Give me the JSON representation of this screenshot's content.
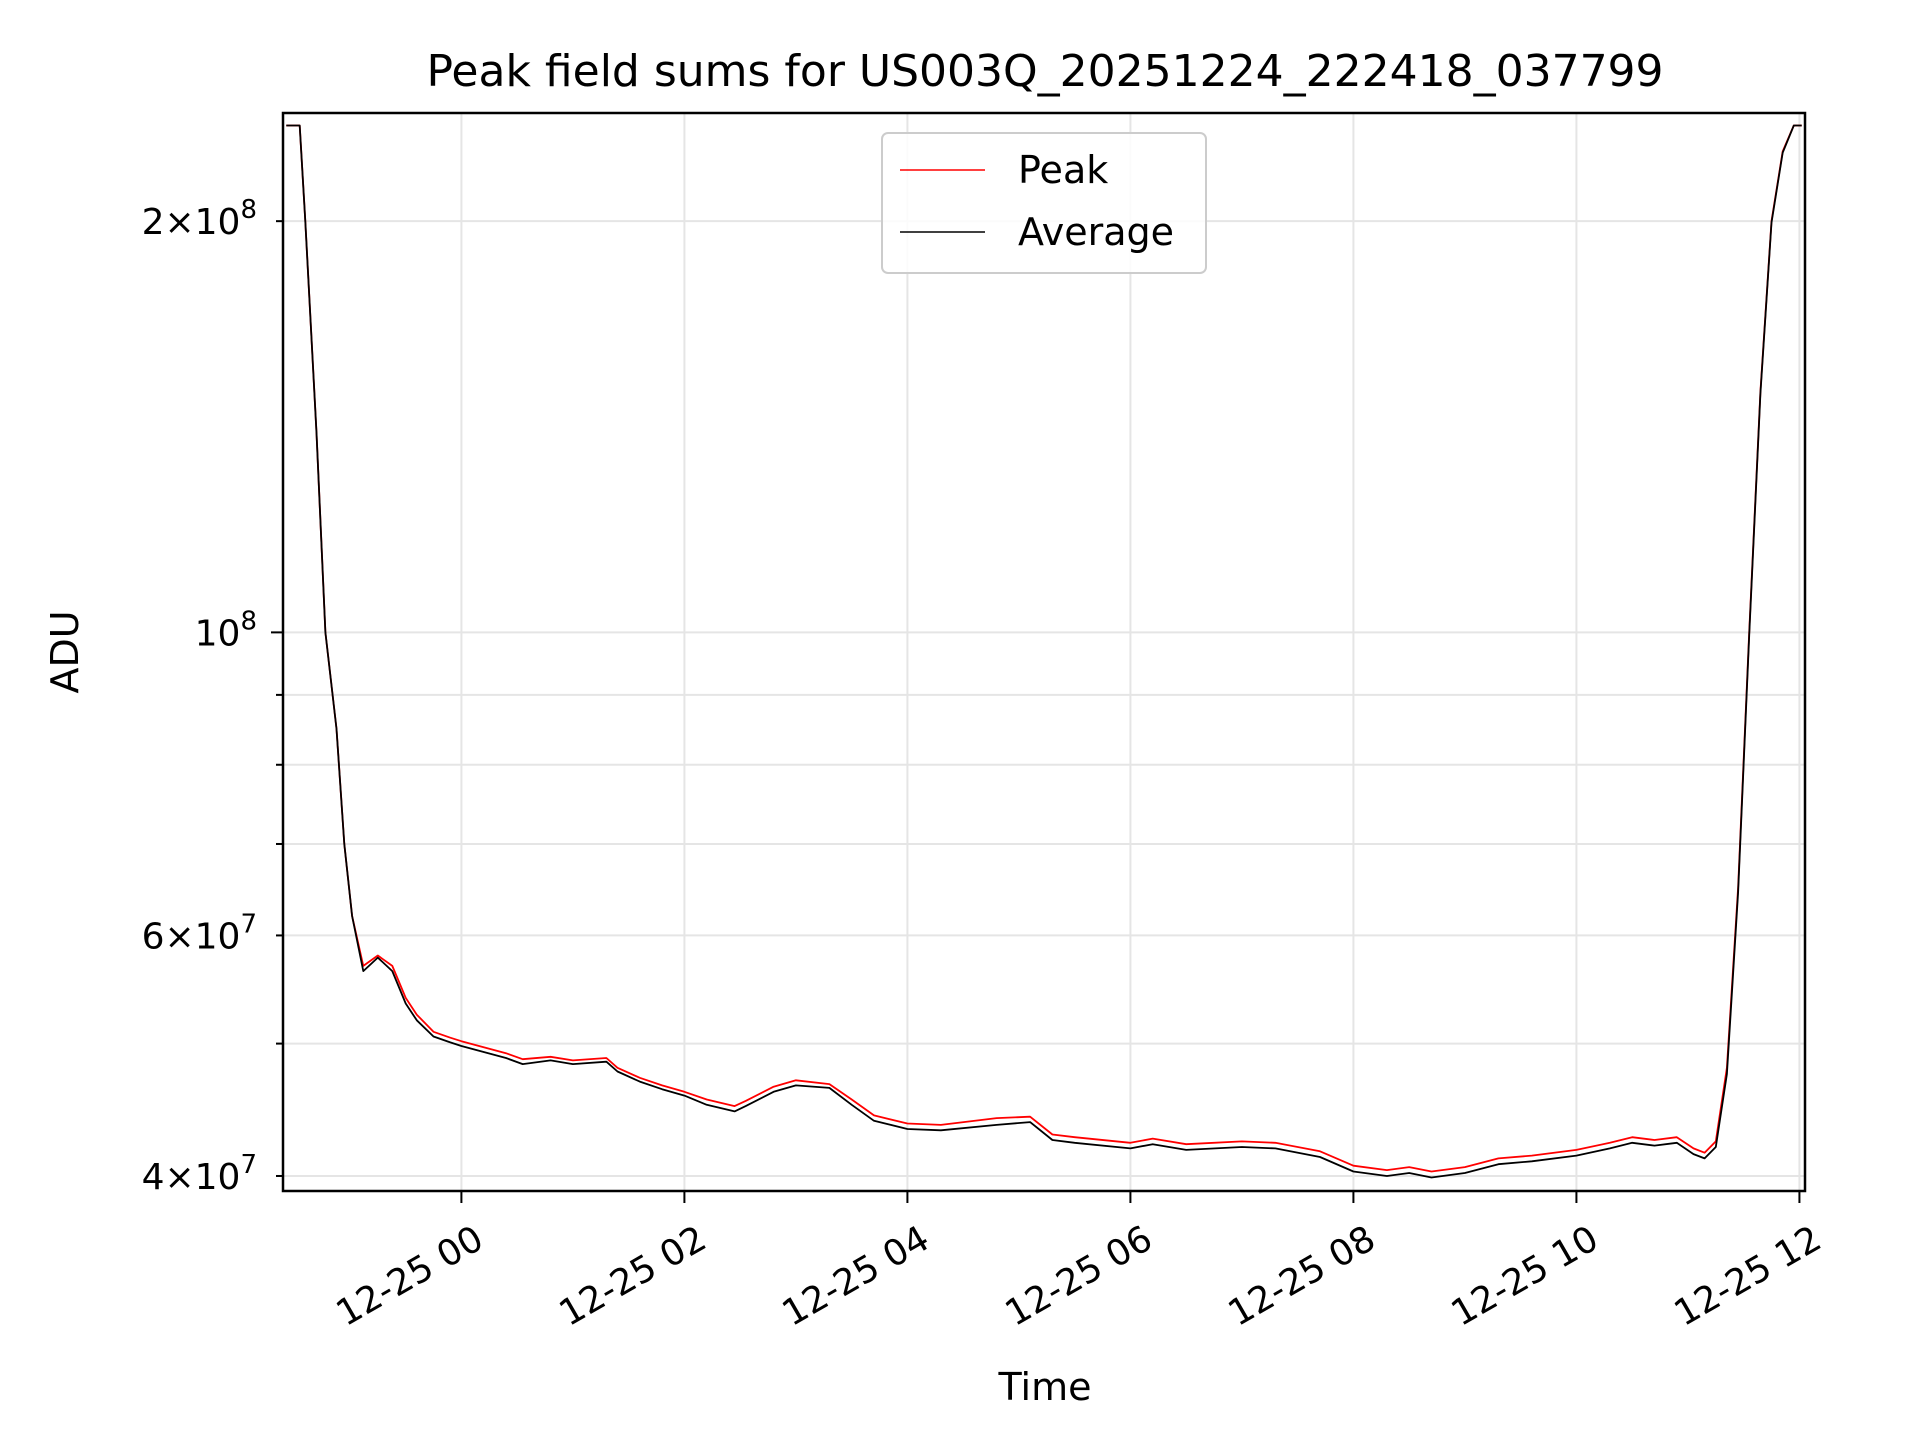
{
  "chart_data": {
    "type": "line",
    "title": "Peak field sums for US003Q_20251224_222418_037799",
    "xlabel": "Time",
    "ylabel": "ADU",
    "yscale": "log",
    "x_units": "hours since 2025-12-25 00:00",
    "xlim": [
      -1.6,
      12.05
    ],
    "ylim": [
      39000000,
      240000000
    ],
    "x_ticks": [
      {
        "value": 0,
        "label": "12-25 00"
      },
      {
        "value": 2,
        "label": "12-25 02"
      },
      {
        "value": 4,
        "label": "12-25 04"
      },
      {
        "value": 6,
        "label": "12-25 06"
      },
      {
        "value": 8,
        "label": "12-25 08"
      },
      {
        "value": 10,
        "label": "12-25 10"
      },
      {
        "value": 12,
        "label": "12-25 12"
      }
    ],
    "y_major_ticks": [
      {
        "value": 100000000,
        "base": "10",
        "exp": "8"
      }
    ],
    "y_minor_ticks": [
      {
        "value": 40000000,
        "mantissa": "4",
        "exp": "7"
      },
      {
        "value": 60000000,
        "mantissa": "6",
        "exp": "7"
      },
      {
        "value": 200000000,
        "mantissa": "2",
        "exp": "8"
      }
    ],
    "y_minor_unlabeled": [
      50000000,
      70000000,
      80000000,
      90000000
    ],
    "grid": true,
    "legend_position": "top-center",
    "series": [
      {
        "name": "Peak",
        "color": "#ff0000",
        "x": [
          -1.57,
          -1.45,
          -1.4,
          -1.3,
          -1.22,
          -1.12,
          -1.05,
          -0.98,
          -0.88,
          -0.75,
          -0.62,
          -0.5,
          -0.4,
          -0.25,
          -0.1,
          0.0,
          0.2,
          0.4,
          0.55,
          0.8,
          1.0,
          1.3,
          1.4,
          1.6,
          1.8,
          2.0,
          2.2,
          2.45,
          2.55,
          2.8,
          3.0,
          3.3,
          3.5,
          3.7,
          4.0,
          4.3,
          4.8,
          5.1,
          5.3,
          5.5,
          6.0,
          6.2,
          6.5,
          7.0,
          7.3,
          7.7,
          8.0,
          8.3,
          8.5,
          8.7,
          9.0,
          9.3,
          9.6,
          10.0,
          10.3,
          10.5,
          10.7,
          10.9,
          11.05,
          11.15,
          11.25,
          11.35,
          11.45,
          11.55,
          11.65,
          11.75,
          11.85,
          11.95,
          12.02
        ],
        "values": [
          235000000,
          235000000,
          200000000,
          140000000,
          100000000,
          85000000,
          70000000,
          62000000,
          57000000,
          58000000,
          57000000,
          54000000,
          52500000,
          51000000,
          50500000,
          50200000,
          49700000,
          49200000,
          48700000,
          48900000,
          48600000,
          48800000,
          48000000,
          47200000,
          46600000,
          46100000,
          45500000,
          45000000,
          45400000,
          46500000,
          47000000,
          46700000,
          45500000,
          44300000,
          43700000,
          43600000,
          44100000,
          44200000,
          42900000,
          42700000,
          42300000,
          42600000,
          42200000,
          42400000,
          42300000,
          41700000,
          40700000,
          40400000,
          40600000,
          40300000,
          40600000,
          41200000,
          41400000,
          41800000,
          42300000,
          42700000,
          42500000,
          42700000,
          41900000,
          41600000,
          42400000,
          48000000,
          65000000,
          100000000,
          150000000,
          200000000,
          225000000,
          235000000,
          235000000
        ]
      },
      {
        "name": "Average",
        "color": "#000000",
        "x": [
          -1.57,
          -1.45,
          -1.4,
          -1.3,
          -1.22,
          -1.12,
          -1.05,
          -0.98,
          -0.88,
          -0.75,
          -0.62,
          -0.5,
          -0.4,
          -0.25,
          -0.1,
          0.0,
          0.2,
          0.4,
          0.55,
          0.8,
          1.0,
          1.3,
          1.4,
          1.6,
          1.8,
          2.0,
          2.2,
          2.45,
          2.55,
          2.8,
          3.0,
          3.3,
          3.5,
          3.7,
          4.0,
          4.3,
          4.8,
          5.1,
          5.3,
          5.5,
          6.0,
          6.2,
          6.5,
          7.0,
          7.3,
          7.7,
          8.0,
          8.3,
          8.5,
          8.7,
          9.0,
          9.3,
          9.6,
          10.0,
          10.3,
          10.5,
          10.7,
          10.9,
          11.05,
          11.15,
          11.25,
          11.35,
          11.45,
          11.55,
          11.65,
          11.75,
          11.85,
          11.95,
          12.02
        ],
        "values": [
          235000000,
          235000000,
          200000000,
          140000000,
          100000000,
          85000000,
          70000000,
          62000000,
          56500000,
          57800000,
          56500000,
          53500000,
          52000000,
          50600000,
          50100000,
          49800000,
          49300000,
          48800000,
          48300000,
          48600000,
          48300000,
          48500000,
          47700000,
          46900000,
          46300000,
          45800000,
          45100000,
          44600000,
          45000000,
          46100000,
          46600000,
          46400000,
          45100000,
          43900000,
          43300000,
          43200000,
          43600000,
          43800000,
          42500000,
          42300000,
          41900000,
          42200000,
          41800000,
          42000000,
          41900000,
          41300000,
          40300000,
          40000000,
          40200000,
          39900000,
          40200000,
          40800000,
          41000000,
          41400000,
          41900000,
          42300000,
          42100000,
          42300000,
          41500000,
          41200000,
          42000000,
          47500000,
          64500000,
          99500000,
          149500000,
          199500000,
          224500000,
          235000000,
          235000000
        ]
      }
    ]
  }
}
